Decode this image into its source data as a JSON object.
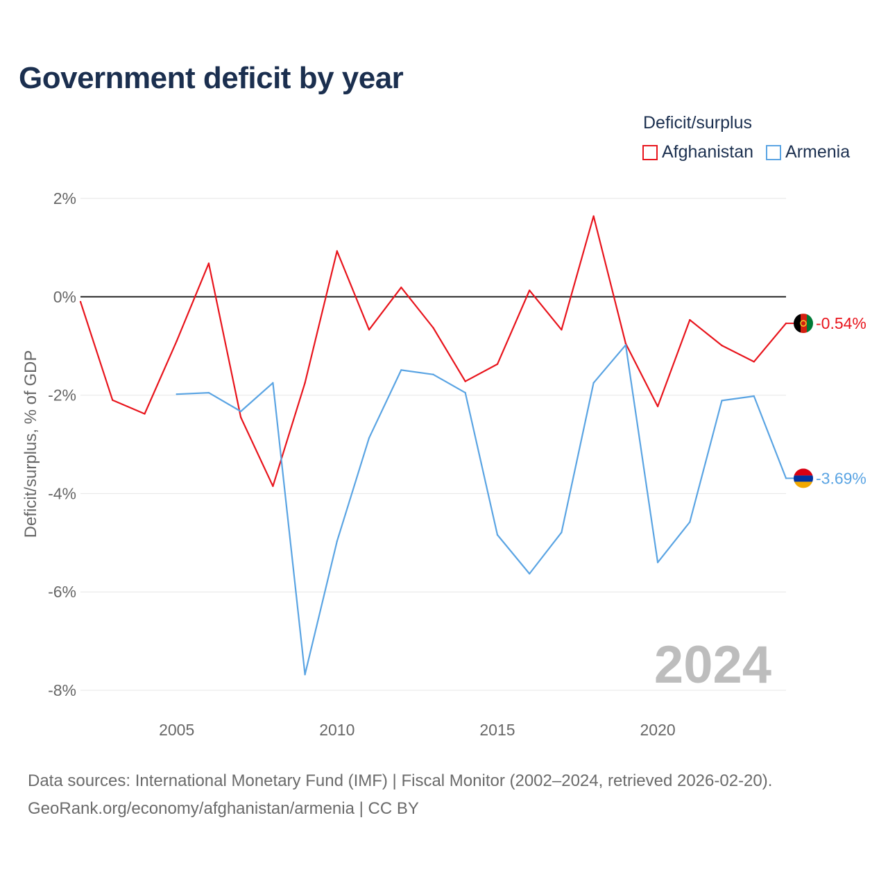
{
  "title": "Government deficit by year",
  "legend": {
    "title": "Deficit/surplus",
    "items": [
      {
        "label": "Afghanistan",
        "color": "#e8141c"
      },
      {
        "label": "Armenia",
        "color": "#5aa4e3"
      }
    ]
  },
  "chart_data": {
    "type": "line",
    "title": "Government deficit by year",
    "ylabel": "Deficit/surplus, % of GDP",
    "xlabel": "",
    "xlim": [
      2002,
      2024
    ],
    "ylim": [
      -8,
      2
    ],
    "x_ticks": [
      2005,
      2010,
      2015,
      2020
    ],
    "y_ticks": [
      2,
      0,
      -2,
      -4,
      -6,
      -8
    ],
    "y_tick_labels": [
      "2%",
      "0%",
      "-2%",
      "-4%",
      "-6%",
      "-8%"
    ],
    "grid": true,
    "series": [
      {
        "name": "Afghanistan",
        "color": "#e8141c",
        "end_label": "-0.54%",
        "points": [
          [
            2002,
            -0.1
          ],
          [
            2003,
            -2.1
          ],
          [
            2004,
            -2.38
          ],
          [
            2005,
            -0.9
          ],
          [
            2006,
            0.68
          ],
          [
            2007,
            -2.45
          ],
          [
            2008,
            -3.85
          ],
          [
            2009,
            -1.75
          ],
          [
            2010,
            0.93
          ],
          [
            2011,
            -0.67
          ],
          [
            2012,
            0.19
          ],
          [
            2013,
            -0.63
          ],
          [
            2014,
            -1.72
          ],
          [
            2015,
            -1.37
          ],
          [
            2016,
            0.13
          ],
          [
            2017,
            -0.67
          ],
          [
            2018,
            1.64
          ],
          [
            2019,
            -0.95
          ],
          [
            2020,
            -2.23
          ],
          [
            2021,
            -0.47
          ],
          [
            2022,
            -0.99
          ],
          [
            2023,
            -1.32
          ],
          [
            2024,
            -0.54
          ]
        ]
      },
      {
        "name": "Armenia",
        "color": "#5aa4e3",
        "end_label": "-3.69%",
        "points": [
          [
            2005,
            -1.98
          ],
          [
            2006,
            -1.95
          ],
          [
            2007,
            -2.33
          ],
          [
            2008,
            -1.75
          ],
          [
            2009,
            -7.68
          ],
          [
            2010,
            -4.97
          ],
          [
            2011,
            -2.87
          ],
          [
            2012,
            -1.49
          ],
          [
            2013,
            -1.58
          ],
          [
            2014,
            -1.95
          ],
          [
            2015,
            -4.84
          ],
          [
            2016,
            -5.63
          ],
          [
            2017,
            -4.79
          ],
          [
            2018,
            -1.75
          ],
          [
            2019,
            -0.98
          ],
          [
            2020,
            -5.4
          ],
          [
            2021,
            -4.58
          ],
          [
            2022,
            -2.11
          ],
          [
            2023,
            -2.02
          ],
          [
            2024,
            -3.69
          ]
        ]
      }
    ],
    "year_marker": "2024"
  },
  "footer": {
    "line1": "Data sources: International Monetary Fund (IMF) | Fiscal Monitor (2002–2024, retrieved 2026-02-20).",
    "line2": "GeoRank.org/economy/afghanistan/armenia | CC BY"
  }
}
